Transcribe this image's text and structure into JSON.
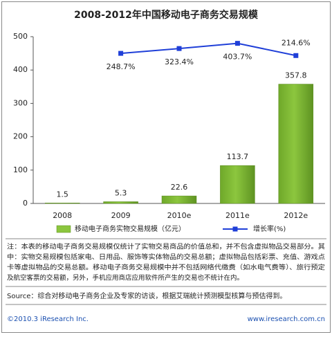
{
  "chart_data": {
    "type": "bar_line",
    "title": "2008-2012年中国移动电子商务交易规模",
    "categories": [
      "2008",
      "2009",
      "2010e",
      "2011e",
      "2012e"
    ],
    "ylim": [
      0,
      500
    ],
    "yticks": [
      0,
      100,
      200,
      300,
      400,
      500
    ],
    "y2lim": [
      -2076.3,
      507.0
    ],
    "series": [
      {
        "name": "移动电子商务实物交易规模（亿元）",
        "type": "bar",
        "color": "#8cc63e",
        "values": [
          1.5,
          5.3,
          22.6,
          113.7,
          357.8
        ]
      },
      {
        "name": "增长率(%)",
        "type": "line",
        "axis": "y2",
        "color": "#1f3fd8",
        "values": [
          null,
          248.7,
          323.4,
          403.7,
          214.6
        ],
        "value_labels": [
          null,
          "248.7%",
          "323.4%",
          "403.7%",
          "214.6%"
        ]
      }
    ]
  },
  "note": [
    "注：本表的移动电子商务交易规模仅统计了实物交易商品的价值总和，并不包含虚拟物品交易部分。其",
    "中：实物交易规模包括家电、日用品、服饰等实体物品的交易总额；虚拟物品包括彩票、充值、游戏点",
    "卡等虚拟物品的交易总额。移动电子商务交易规模中并不包括网络代缴费（如水电气费等）、旅行预定",
    "及航空客票的交易额，另外，手机应用商店应用软件所产生的交易也不统计在内。"
  ],
  "source": "Source：综合对移动电子商务企业及专家的访谈，根据艾瑞统计预测模型核算与预估得到。",
  "copyright": "©2010.3 iResearch Inc.",
  "website": "www.iresearch.com.cn"
}
